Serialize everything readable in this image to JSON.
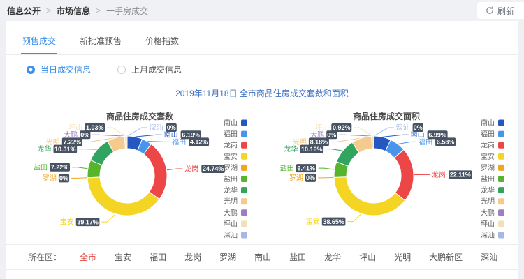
{
  "page": {
    "breadcrumb": [
      "信息公开",
      "市场信息",
      "一手房成交"
    ],
    "breadcrumb_separator": ">",
    "refresh_label": "刷新"
  },
  "tabs": [
    {
      "label": "预售成交",
      "active": true
    },
    {
      "label": "新批准预售",
      "active": false
    },
    {
      "label": "价格指数",
      "active": false
    }
  ],
  "radio_group": [
    {
      "label": "当日成交信息",
      "selected": true
    },
    {
      "label": "上月成交信息",
      "selected": false
    }
  ],
  "section_title": "2019年11月18日 全市商品住房成交套数和面积",
  "chart_data": [
    {
      "type": "pie",
      "variant": "donut",
      "title": "商品住房成交套数",
      "unit": "%",
      "legend_position": "right",
      "categories": [
        "南山",
        "福田",
        "龙岗",
        "宝安",
        "罗湖",
        "盐田",
        "龙华",
        "光明",
        "大鹏",
        "坪山",
        "深汕"
      ],
      "values": [
        6.19,
        4.12,
        24.74,
        39.17,
        0,
        7.22,
        10.31,
        7.22,
        0,
        1.03,
        0
      ],
      "colors": [
        "#2457c0",
        "#4a95ec",
        "#ed4646",
        "#f4d523",
        "#f0a623",
        "#56b52d",
        "#31a45f",
        "#f4ca8f",
        "#9b7dc8",
        "#f2e0ba",
        "#a5b8e6"
      ]
    },
    {
      "type": "pie",
      "variant": "donut",
      "title": "商品住房成交面积",
      "unit": "%",
      "legend_position": "right",
      "categories": [
        "南山",
        "福田",
        "龙岗",
        "宝安",
        "罗湖",
        "盐田",
        "龙华",
        "光明",
        "大鹏",
        "坪山",
        "深汕"
      ],
      "values": [
        6.99,
        6.58,
        22.11,
        38.65,
        0,
        6.41,
        10.16,
        8.18,
        0,
        0.92,
        0
      ],
      "colors": [
        "#2457c0",
        "#4a95ec",
        "#ed4646",
        "#f4d523",
        "#f0a623",
        "#56b52d",
        "#31a45f",
        "#f4ca8f",
        "#9b7dc8",
        "#f2e0ba",
        "#a5b8e6"
      ]
    }
  ],
  "style": {
    "accent_blue": "#3a8ee8",
    "title_blue": "#3d6fc0",
    "label_badge_color": "#475263",
    "legend_text_color": "#666666",
    "district_selected_color": "#df4b4b"
  },
  "district_filter": {
    "label": "所在区：",
    "selected": "全市",
    "options": [
      "全市",
      "宝安",
      "福田",
      "龙岗",
      "罗湖",
      "南山",
      "盐田",
      "龙华",
      "坪山",
      "光明",
      "大鹏新区",
      "深汕"
    ]
  }
}
